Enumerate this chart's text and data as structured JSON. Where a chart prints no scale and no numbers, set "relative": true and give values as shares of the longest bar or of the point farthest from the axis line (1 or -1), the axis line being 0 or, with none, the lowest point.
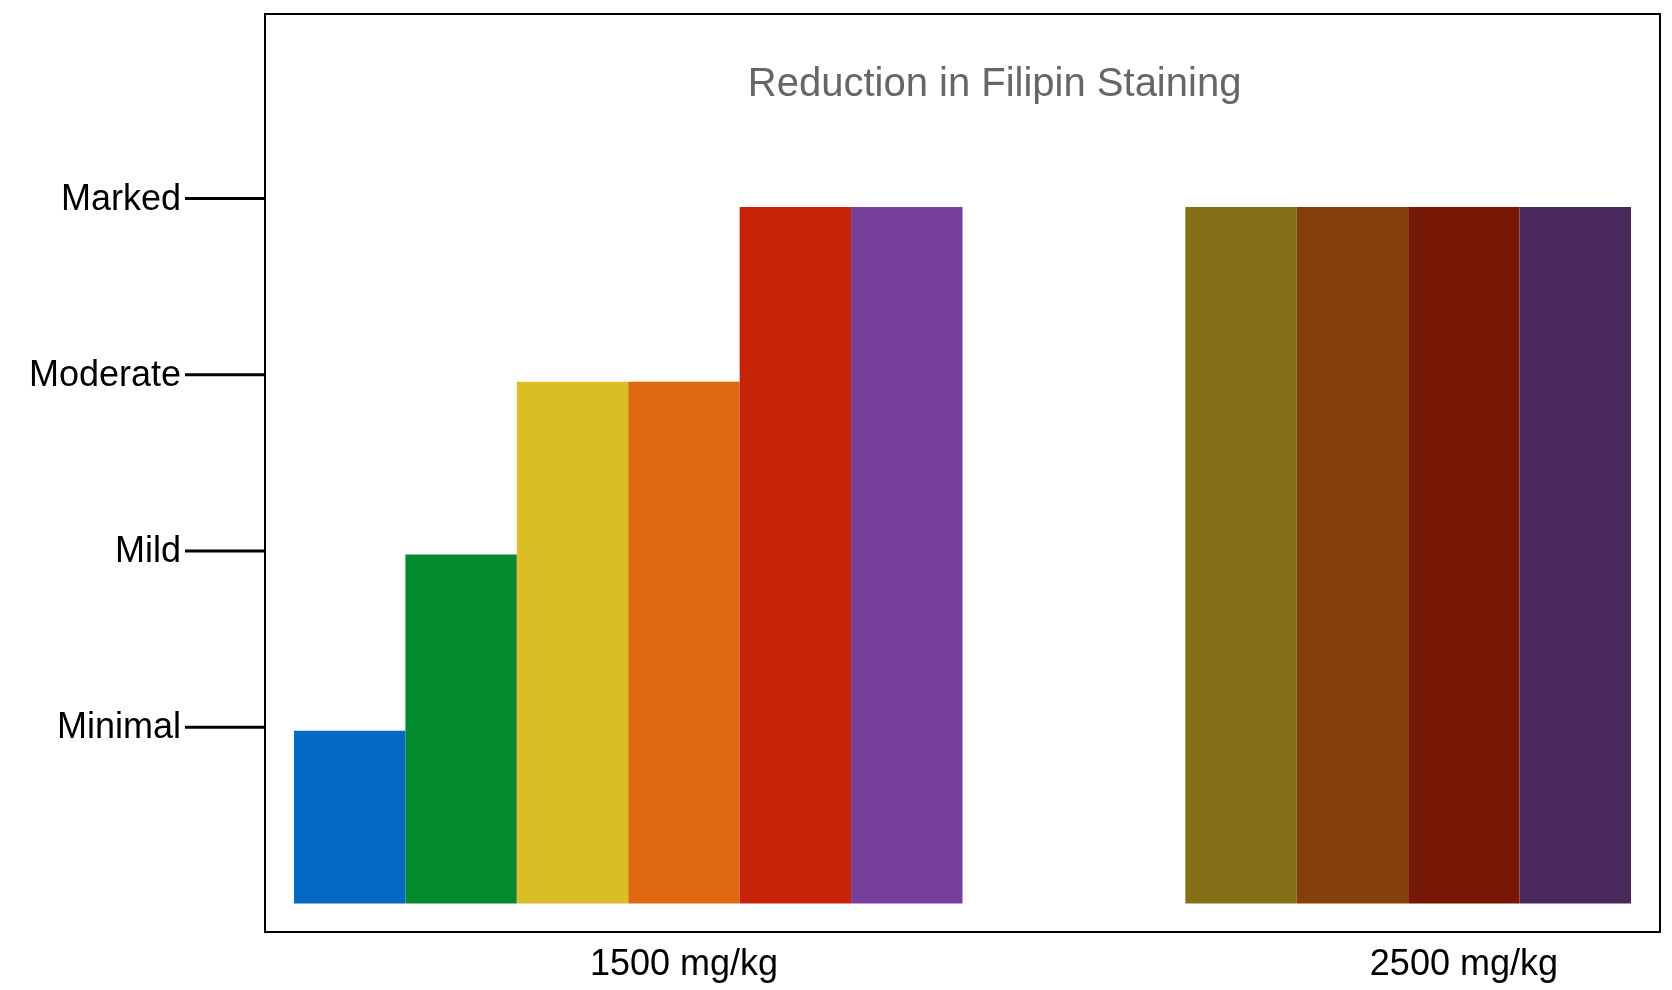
{
  "chart_data": {
    "type": "bar",
    "title": "Reduction in Filipin Staining",
    "relative": true,
    "categories": [
      null,
      null,
      null,
      "1500 mg/kg",
      null,
      null,
      null,
      null,
      null,
      null,
      "2500 mg/kg",
      null
    ],
    "values": [
      0.248,
      0.501,
      0.749,
      0.749,
      1,
      1,
      null,
      null,
      1,
      1,
      1,
      1
    ],
    "colors": [
      "#0568c2",
      "#028a2f",
      "#dbbd25",
      "#dd6911",
      "#c72407",
      "#773f9b",
      "#ffffff",
      "#ffffff",
      "#846f16",
      "#843f0b",
      "#771705",
      "#49295c"
    ],
    "annotations": [
      "Minimal",
      "Mild",
      "Moderate",
      "Marked"
    ],
    "grid": false
  }
}
